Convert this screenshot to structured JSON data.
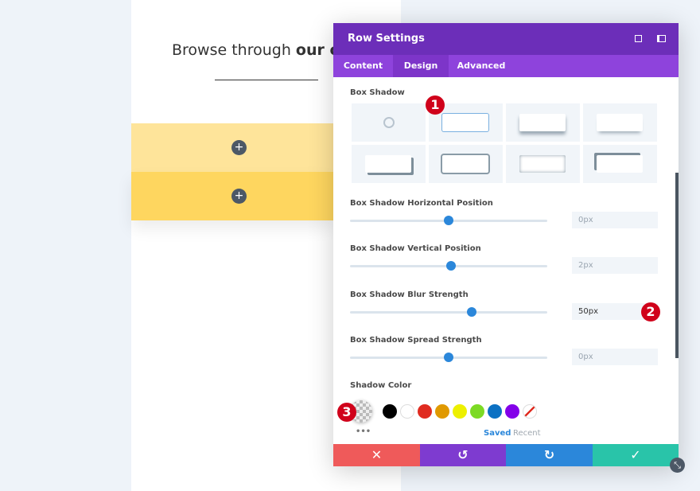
{
  "page": {
    "heading": {
      "prefix": "Browse through ",
      "bold": "our catalo"
    }
  },
  "panel": {
    "title": "Row Settings",
    "tabs": [
      "Content",
      "Design",
      "Advanced"
    ],
    "box_shadow_label": "Box Shadow",
    "sliders": [
      {
        "label": "Box Shadow Horizontal Position",
        "value": "0px"
      },
      {
        "label": "Box Shadow Vertical Position",
        "value": "2px"
      },
      {
        "label": "Box Shadow Blur Strength",
        "value": "50px"
      },
      {
        "label": "Box Shadow Spread Strength",
        "value": "0px"
      }
    ],
    "shadow_color_label": "Shadow Color",
    "saved": "Saved",
    "recent": "Recent"
  },
  "callouts": [
    "1",
    "2",
    "3"
  ]
}
